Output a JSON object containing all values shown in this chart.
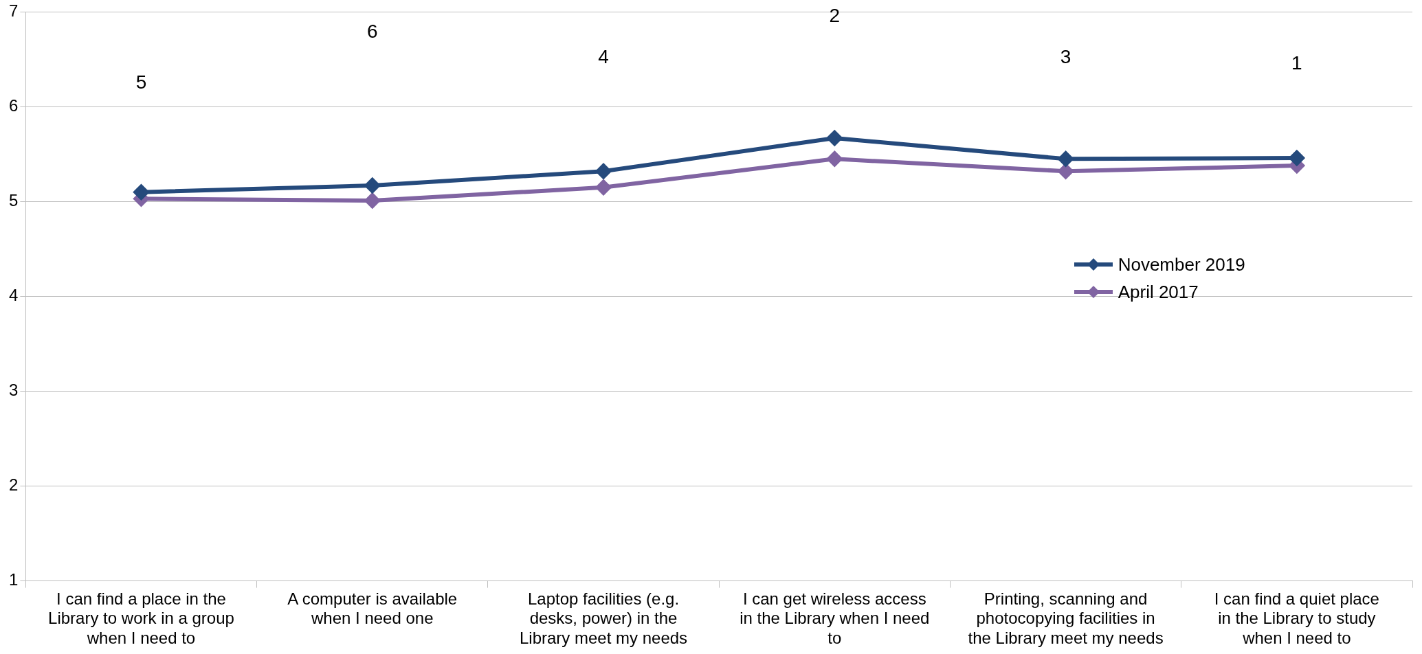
{
  "chart_data": {
    "type": "line",
    "categories": [
      "I can find a place in the Library to work in a group when I need to",
      "A computer is available when I need one",
      "Laptop facilities (e.g. desks, power) in the Library meet my needs",
      "I can get wireless access in the Library when I need to",
      "Printing, scanning and photocopying facilities in the Library meet my needs",
      "I can find a quiet place in the Library to study when I need to"
    ],
    "series": [
      {
        "name": "November 2019",
        "color": "#254a7c",
        "values": [
          5.1,
          5.17,
          5.32,
          5.67,
          5.45,
          5.46
        ]
      },
      {
        "name": "April 2017",
        "color": "#8064a2",
        "values": [
          5.03,
          5.01,
          5.15,
          5.45,
          5.32,
          5.38
        ]
      }
    ],
    "ylim": [
      1,
      7
    ],
    "yticks": [
      1,
      2,
      3,
      4,
      5,
      6,
      7
    ],
    "grid": "y",
    "legend": "right",
    "marker": "diamond",
    "line_style": "solid",
    "annotations": [
      "5",
      "6",
      "4",
      "2",
      "3",
      "1"
    ]
  }
}
